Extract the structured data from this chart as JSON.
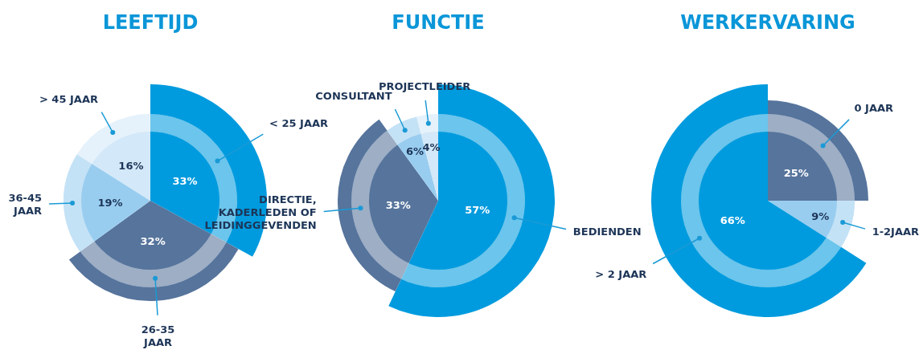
{
  "chart_data": [
    {
      "type": "pie",
      "title": "LEEFTIJD",
      "categories": [
        "< 25 JAAR",
        "26-35 JAAR",
        "36-45 JAAR",
        "> 45 JAAR"
      ],
      "values": [
        33,
        32,
        19,
        16
      ],
      "colors": [
        "#009bde",
        "#56749c",
        "#99cdf0",
        "#d3e8f8"
      ],
      "value_labels": [
        "33%",
        "32%",
        "19%",
        "16%"
      ]
    },
    {
      "type": "pie",
      "title": "FUNCTIE",
      "categories": [
        "BEDIENDEN",
        "DIRECTIE, KADERLEDEN OF LEIDINGGEVENDEN",
        "CONSULTANT",
        "PROJECTLEIDER"
      ],
      "values": [
        57,
        33,
        6,
        4
      ],
      "colors": [
        "#009bde",
        "#56749c",
        "#99cdf0",
        "#d3e8f8"
      ],
      "value_labels": [
        "57%",
        "33%",
        "6%",
        "4%"
      ]
    },
    {
      "type": "pie",
      "title": "WERKERVARING",
      "categories": [
        "0 JAAR",
        "1-2JAAR",
        "> 2 JAAR"
      ],
      "values": [
        25,
        9,
        66
      ],
      "colors": [
        "#56749c",
        "#99cdf0",
        "#009bde"
      ],
      "value_labels": [
        "25%",
        "9%",
        "66%"
      ]
    }
  ]
}
